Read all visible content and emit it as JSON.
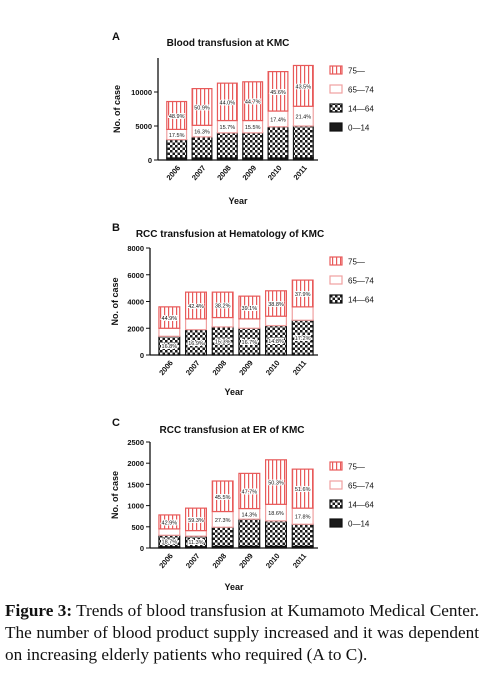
{
  "figure": {
    "label_word": "Figure 3:",
    "caption_text": "Trends of blood transfusion at Kumamoto Medical Center. The number of blood product supply increased and it was dependent on increasing elderly patients who required (A to C)."
  },
  "colors": {
    "seg_75": "#e85a5a",
    "seg_65_74": "#f0a0a0",
    "seg_14_64": "#1a1a1a",
    "seg_0_14": "#1a1a1a"
  },
  "chart_data": [
    {
      "type": "bar",
      "stacked": true,
      "panel_letter": "A",
      "title": "Blood transfusion at KMC",
      "xlabel": "Year",
      "ylabel": "No. of case",
      "categories": [
        "2006",
        "2007",
        "2008",
        "2009",
        "2010",
        "2011"
      ],
      "ylim": [
        0,
        15000
      ],
      "yticks": [
        "0",
        "5000",
        "10000"
      ],
      "ytick_values": [
        0,
        5000,
        10000
      ],
      "series": [
        {
          "name": "0—14",
          "key": "seg_0_14",
          "values": [
            300,
            300,
            300,
            300,
            300,
            300
          ]
        },
        {
          "name": "14—64",
          "key": "seg_14_64",
          "values": [
            2700,
            3100,
            3700,
            3700,
            4600,
            4700
          ]
        },
        {
          "name": "65—74",
          "key": "seg_65_74",
          "values": [
            1500,
            1700,
            1800,
            1800,
            2300,
            2900
          ]
        },
        {
          "name": "75—",
          "key": "seg_75",
          "values": [
            4100,
            5400,
            5500,
            5700,
            5800,
            6000
          ]
        }
      ],
      "segment_labels": {
        "seg_65_74": [
          "17.5%",
          "16.3%",
          "15.7%",
          "15.5%",
          "17.4%",
          "21.4%"
        ],
        "seg_75": [
          "48.9%",
          "50.9%",
          "44.0%",
          "44.7%",
          "45.6%",
          "43.5%"
        ]
      },
      "legend": [
        "75—",
        "65—74",
        "14—64",
        "0—14"
      ],
      "legend_position": "right"
    },
    {
      "type": "bar",
      "stacked": true,
      "panel_letter": "B",
      "title": "RCC transfusion at Hematology of KMC",
      "xlabel": "Year",
      "ylabel": "No. of case",
      "categories": [
        "2006",
        "2007",
        "2008",
        "2009",
        "2010",
        "2011"
      ],
      "ylim": [
        0,
        8000
      ],
      "yticks": [
        "0",
        "2000",
        "4000",
        "6000",
        "8000"
      ],
      "ytick_values": [
        0,
        2000,
        4000,
        6000,
        8000
      ],
      "series": [
        {
          "name": "14—64",
          "key": "seg_14_64",
          "values": [
            1400,
            1900,
            2100,
            2000,
            2200,
            2600
          ]
        },
        {
          "name": "65—74",
          "key": "seg_65_74",
          "values": [
            600,
            800,
            700,
            700,
            700,
            1000
          ]
        },
        {
          "name": "75—",
          "key": "seg_75",
          "values": [
            1600,
            2000,
            1900,
            1700,
            1900,
            2000
          ]
        }
      ],
      "segment_labels": {
        "seg_14_64": [
          "16.8%",
          "16.9%",
          "15.3%",
          "16.7%",
          "14.8%",
          "17.2%"
        ],
        "seg_75": [
          "44.9%",
          "42.4%",
          "38.2%",
          "39.1%",
          "38.8%",
          "37.9%"
        ]
      },
      "legend": [
        "75—",
        "65—74",
        "14—64"
      ],
      "legend_position": "right"
    },
    {
      "type": "bar",
      "stacked": true,
      "panel_letter": "C",
      "title": "RCC transfusion at ER of KMC",
      "xlabel": "Year",
      "ylabel": "No. of case",
      "categories": [
        "2006",
        "2007",
        "2008",
        "2009",
        "2010",
        "2011"
      ],
      "ylim": [
        0,
        2500
      ],
      "yticks": [
        "0",
        "500",
        "1000",
        "1500",
        "2000",
        "2500"
      ],
      "ytick_values": [
        0,
        500,
        1000,
        1500,
        2000,
        2500
      ],
      "series": [
        {
          "name": "0—14",
          "key": "seg_0_14",
          "values": [
            30,
            30,
            40,
            40,
            40,
            40
          ]
        },
        {
          "name": "14—64",
          "key": "seg_14_64",
          "values": [
            270,
            250,
            450,
            640,
            600,
            520
          ]
        },
        {
          "name": "65—74",
          "key": "seg_65_74",
          "values": [
            150,
            130,
            370,
            250,
            390,
            380
          ]
        },
        {
          "name": "75—",
          "key": "seg_75",
          "values": [
            330,
            530,
            720,
            830,
            1050,
            920
          ]
        }
      ],
      "segment_labels": {
        "seg_14_64": [
          "18.7%",
          "11.3%",
          "",
          "",
          "",
          ""
        ],
        "seg_65_74": [
          "",
          "",
          "27.3%",
          "14.3%",
          "18.6%",
          "17.8%"
        ],
        "seg_75": [
          "42.9%",
          "59.3%",
          "45.5%",
          "47.7%",
          "50.3%",
          "51.6%"
        ]
      },
      "legend": [
        "75—",
        "65—74",
        "14—64",
        "0—14"
      ],
      "legend_position": "right"
    }
  ]
}
